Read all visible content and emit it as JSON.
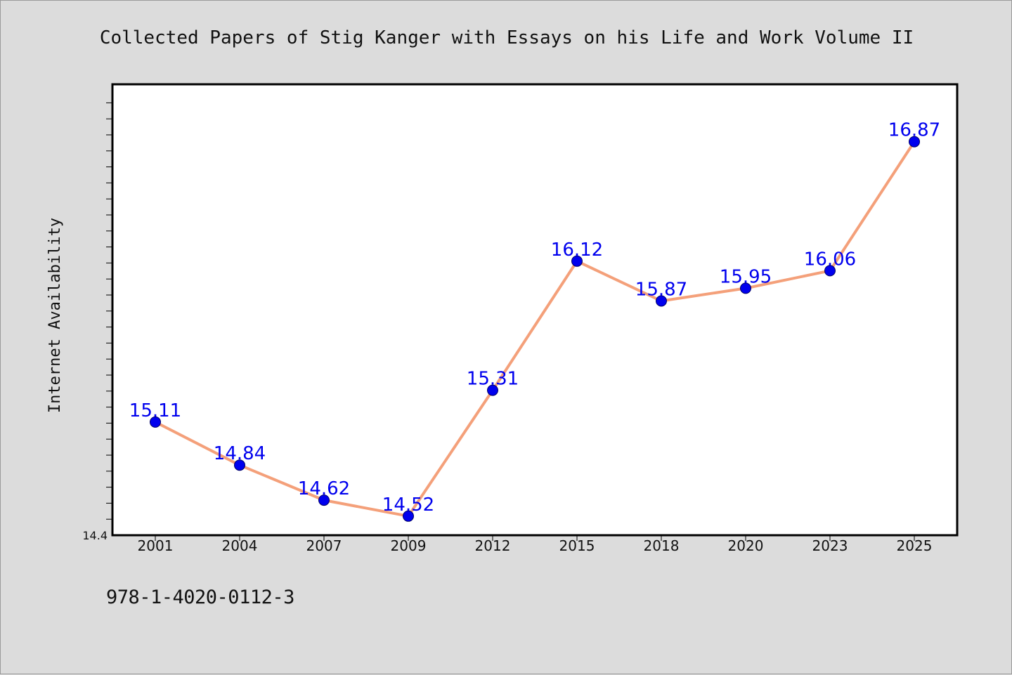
{
  "chart_data": {
    "type": "line",
    "title": "Collected Papers of Stig Kanger with Essays on his Life and Work Volume II",
    "ylabel": "Internet Availability",
    "xlabel": "",
    "categories": [
      "2001",
      "2004",
      "2007",
      "2009",
      "2012",
      "2015",
      "2018",
      "2020",
      "2023",
      "2025"
    ],
    "values": [
      15.11,
      14.84,
      14.62,
      14.52,
      15.31,
      16.12,
      15.87,
      15.95,
      16.06,
      16.87
    ],
    "data_labels": [
      "15.11",
      "14.84",
      "14.62",
      "14.52",
      "15.31",
      "16.12",
      "15.87",
      "15.95",
      "16.06",
      "16.87"
    ],
    "ylim": [
      14.4,
      17.23
    ],
    "y_tick_label": "14.4",
    "grid": false,
    "legend": "none",
    "colors": {
      "line": "#f4a07a",
      "marker": "#0000ee",
      "data_label": "#0000ee",
      "plot_background": "#ffffff",
      "figure_background": "#dcdcdc"
    }
  },
  "footer": {
    "isbn": "978-1-4020-0112-3"
  }
}
